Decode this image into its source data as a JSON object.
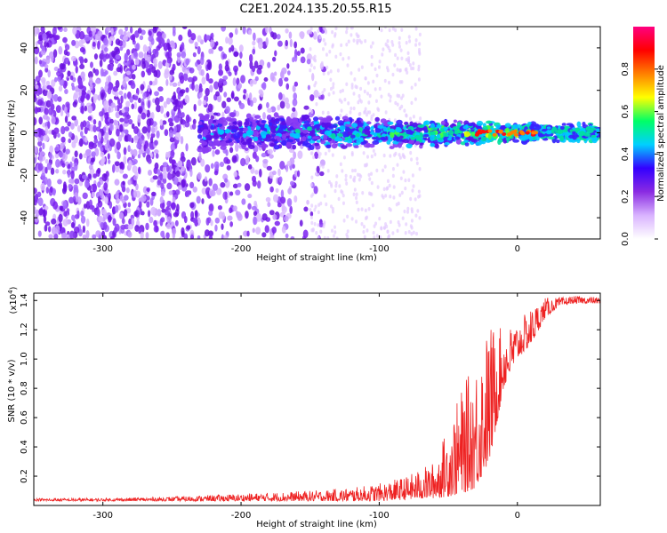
{
  "title": "C2E1.2024.135.20.55.R15",
  "chart_data": [
    {
      "type": "heatmap",
      "title": "C2E1.2024.135.20.55.R15",
      "xlabel": "Height of straight line (km)",
      "ylabel": "Frequency (Hz)",
      "xlim": [
        -350,
        60
      ],
      "ylim": [
        -50,
        50
      ],
      "xticks": [
        -300,
        -200,
        -100,
        0
      ],
      "yticks": [
        -40,
        -20,
        0,
        20,
        40
      ],
      "colorbar": {
        "label": "Normalized spectral amplitude",
        "range": [
          0.0,
          1.0
        ],
        "ticks": [
          "0.0",
          "0.2",
          "0.4",
          "0.6",
          "0.8"
        ],
        "colormap": [
          "#ffffff",
          "#d9b3ff",
          "#8a2be2",
          "#3300ff",
          "#00d0ff",
          "#00ff66",
          "#ffff00",
          "#ff8000",
          "#ff0000",
          "#ff0080"
        ]
      },
      "description_of_signal": "scattered purple noise for heights below about -160 km; a band centered near 0 Hz from about -230 km to 60 km, increasing in amplitude toward 0 km and above"
    },
    {
      "type": "line",
      "xlabel": "Height of straight line (km)",
      "ylabel": "SNR (10 * v/v)",
      "y_multiplier": "(x10",
      "y_multiplier_exp": "4",
      "xlim": [
        -350,
        60
      ],
      "ylim": [
        0.0,
        1.45
      ],
      "xticks": [
        -300,
        -200,
        -100,
        0
      ],
      "yticks": [
        "0.2",
        "0.4",
        "0.6",
        "0.8",
        "1.0",
        "1.2",
        "1.4"
      ],
      "color": "#ee2222",
      "envelope": {
        "x": [
          -350,
          -300,
          -250,
          -200,
          -150,
          -120,
          -100,
          -80,
          -60,
          -50,
          -40,
          -30,
          -20,
          -10,
          0,
          10,
          20,
          30,
          40,
          50,
          60
        ],
        "low": [
          0.03,
          0.03,
          0.03,
          0.03,
          0.03,
          0.03,
          0.03,
          0.04,
          0.05,
          0.06,
          0.08,
          0.12,
          0.3,
          0.8,
          1.0,
          1.1,
          1.28,
          1.36,
          1.38,
          1.38,
          1.38
        ],
        "high": [
          0.05,
          0.05,
          0.06,
          0.08,
          0.1,
          0.12,
          0.15,
          0.2,
          0.3,
          0.55,
          0.8,
          1.0,
          1.25,
          1.2,
          1.25,
          1.35,
          1.42,
          1.42,
          1.43,
          1.43,
          1.42
        ]
      }
    }
  ]
}
